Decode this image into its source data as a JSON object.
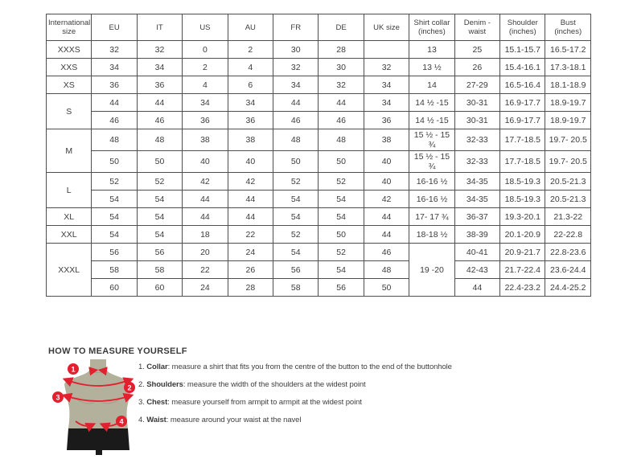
{
  "colors": {
    "accent_red": "#e2202e",
    "torso_olive": "#b3b09b",
    "shorts_black": "#1a1a1a",
    "table_border": "#4f4f4f",
    "text_dark": "#3d3d3d"
  },
  "table": {
    "headers": [
      "International size",
      "EU",
      "IT",
      "US",
      "AU",
      "FR",
      "DE",
      "UK size",
      "Shirt collar (inches)",
      "Denim - waist",
      "Shoulder (inches)",
      "Bust (inches)"
    ],
    "groups": [
      {
        "size": "XXXS",
        "rows": [
          [
            "32",
            "32",
            "0",
            "2",
            "30",
            "28",
            "",
            "13",
            "25",
            "15.1-15.7",
            "16.5-17.2"
          ]
        ]
      },
      {
        "size": "XXS",
        "rows": [
          [
            "34",
            "34",
            "2",
            "4",
            "32",
            "30",
            "32",
            "13 ½",
            "26",
            "15.4-16.1",
            "17.3-18.1"
          ]
        ]
      },
      {
        "size": "XS",
        "rows": [
          [
            "36",
            "36",
            "4",
            "6",
            "34",
            "32",
            "34",
            "14",
            "27-29",
            "16.5-16.4",
            "18.1-18.9"
          ]
        ]
      },
      {
        "size": "S",
        "rows": [
          [
            "44",
            "44",
            "34",
            "34",
            "44",
            "44",
            "34",
            "14 ½ -15",
            "30-31",
            "16.9-17.7",
            "18.9-19.7"
          ],
          [
            "46",
            "46",
            "36",
            "36",
            "46",
            "46",
            "36",
            "14 ½ -15",
            "30-31",
            "16.9-17.7",
            "18.9-19.7"
          ]
        ]
      },
      {
        "size": "M",
        "rows": [
          [
            "48",
            "48",
            "38",
            "38",
            "48",
            "48",
            "38",
            "15 ½ - 15 ¾",
            "32-33",
            "17.7-18.5",
            "19.7- 20.5"
          ],
          [
            "50",
            "50",
            "40",
            "40",
            "50",
            "50",
            "40",
            "15 ½ - 15 ¾",
            "32-33",
            "17.7-18.5",
            "19.7- 20.5"
          ]
        ]
      },
      {
        "size": "L",
        "rows": [
          [
            "52",
            "52",
            "42",
            "42",
            "52",
            "52",
            "40",
            "16-16 ½",
            "34-35",
            "18.5-19.3",
            "20.5-21.3"
          ],
          [
            "54",
            "54",
            "44",
            "44",
            "54",
            "54",
            "42",
            "16-16 ½",
            "34-35",
            "18.5-19.3",
            "20.5-21.3"
          ]
        ]
      },
      {
        "size": "XL",
        "rows": [
          [
            "54",
            "54",
            "44",
            "44",
            "54",
            "54",
            "44",
            "17- 17 ¾",
            "36-37",
            "19.3-20.1",
            "21.3-22"
          ]
        ]
      },
      {
        "size": "XXL",
        "rows": [
          [
            "54",
            "54",
            "18",
            "22",
            "52",
            "50",
            "44",
            "18-18 ½",
            "38-39",
            "20.1-20.9",
            "22-22.8"
          ]
        ]
      },
      {
        "size": "XXXL",
        "merge_collar": true,
        "rows": [
          [
            "56",
            "56",
            "20",
            "24",
            "54",
            "52",
            "46",
            "19 -20",
            "40-41",
            "20.9-21.7",
            "22.8-23.6"
          ],
          [
            "58",
            "58",
            "22",
            "26",
            "56",
            "54",
            "48",
            "",
            "42-43",
            "21.7-22.4",
            "23.6-24.4"
          ],
          [
            "60",
            "60",
            "24",
            "28",
            "58",
            "56",
            "50",
            "",
            "44",
            "22.4-23.2",
            "24.4-25.2"
          ]
        ]
      }
    ]
  },
  "measure": {
    "title": "HOW TO MEASURE YOURSELF",
    "markers": [
      "1",
      "2",
      "3",
      "4"
    ],
    "items": [
      {
        "num": "1.",
        "label": "Collar",
        "text": ": measure a shirt that fits you from the centre of the button to the end of the buttonhole"
      },
      {
        "num": "2.",
        "label": "Shoulders",
        "text": ": measure the width of the shoulders at the widest point"
      },
      {
        "num": "3.",
        "label": "Chest",
        "text": ": measure yourself from armpit to armpit at the widest point"
      },
      {
        "num": "4.",
        "label": "Waist",
        "text": ": measure around your waist at the navel"
      }
    ]
  }
}
